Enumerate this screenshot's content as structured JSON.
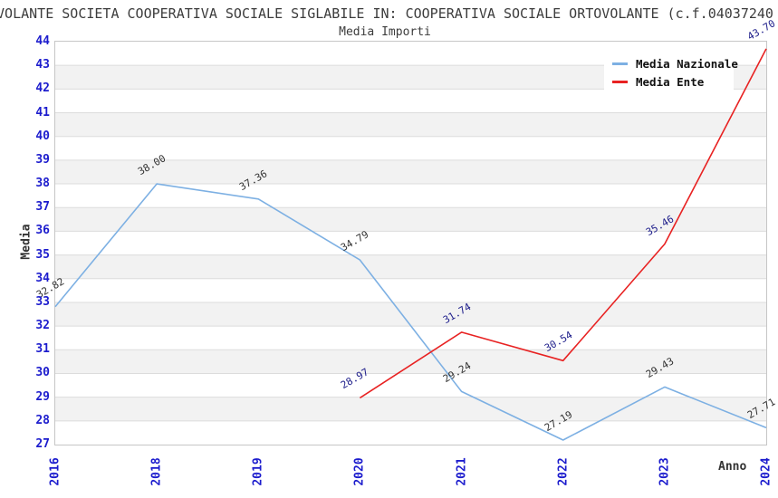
{
  "title": "VOLANTE SOCIETA COOPERATIVA SOCIALE SIGLABILE IN: COOPERATIVA SOCIALE ORTOVOLANTE (c.f.04037240",
  "subtitle": "Media Importi",
  "axes": {
    "y_label": "Media",
    "x_label": "Anno",
    "y_ticks": [
      44,
      43,
      42,
      41,
      40,
      39,
      38,
      37,
      36,
      35,
      34,
      33,
      32,
      31,
      30,
      29,
      28,
      27
    ],
    "x_ticks": [
      "2016",
      "2018",
      "2019",
      "2020",
      "2021",
      "2022",
      "2023",
      "2024"
    ]
  },
  "legend": {
    "position": "top-right",
    "items": [
      {
        "label": "Media Nazionale",
        "color": "#7db0e3"
      },
      {
        "label": "Media Ente",
        "color": "#e82222"
      }
    ]
  },
  "chart_data": {
    "type": "line",
    "title": "Media Importi",
    "xlabel": "Anno",
    "ylabel": "Media",
    "x": [
      "2016",
      "2018",
      "2019",
      "2020",
      "2021",
      "2022",
      "2023",
      "2024"
    ],
    "series": [
      {
        "name": "Media Nazionale",
        "color": "#7db0e3",
        "label_color": "#333333",
        "values": [
          32.82,
          38.0,
          37.36,
          34.79,
          29.24,
          27.19,
          29.43,
          27.71
        ],
        "labels": [
          "32.82",
          "38.00",
          "37.36",
          "34.79",
          "29.24",
          "27.19",
          "29.43",
          "27.71"
        ]
      },
      {
        "name": "Media Ente",
        "color": "#e82222",
        "label_color": "#20208c",
        "values": [
          null,
          null,
          null,
          28.97,
          31.74,
          30.54,
          35.46,
          43.7
        ],
        "labels": [
          null,
          null,
          null,
          "28.97",
          "31.74",
          "30.54",
          "35.46",
          "43.70"
        ]
      }
    ],
    "ylim": [
      27,
      44
    ],
    "grid": "horizontal",
    "band_colors": [
      "#ffffff",
      "#f2f2f2"
    ],
    "gridline_color": "#dcdcdc",
    "legend_position": "top-right"
  },
  "colors": {
    "tick_label": "#1c1ccd",
    "title_text": "#3c3c3c",
    "axis_title_text": "#333333",
    "plot_border": "#c6c6c6"
  }
}
